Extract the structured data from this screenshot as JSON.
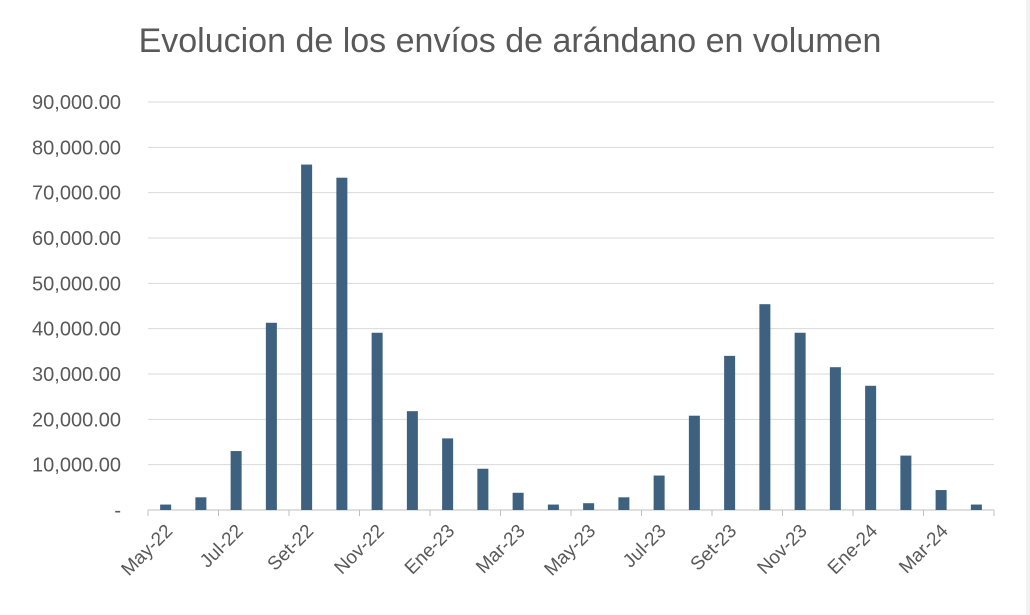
{
  "chart_data": {
    "type": "bar",
    "title": "Evolucion de los envíos de arándano en volumen",
    "xlabel": "",
    "ylabel": "",
    "ylim": [
      0,
      90000
    ],
    "yticks": [
      0,
      10000,
      20000,
      30000,
      40000,
      50000,
      60000,
      70000,
      80000,
      90000
    ],
    "ytick_labels": [
      "-",
      "10,000.00",
      "20,000.00",
      "30,000.00",
      "40,000.00",
      "50,000.00",
      "60,000.00",
      "70,000.00",
      "80,000.00",
      "90,000.00"
    ],
    "grid": true,
    "legend": "none",
    "bar_color": "#3e6180",
    "categories": [
      "May-22",
      "Jun-22",
      "Jul-22",
      "Ago-22",
      "Set-22",
      "Oct-22",
      "Nov-22",
      "Dic-22",
      "Ene-23",
      "Feb-23",
      "Mar-23",
      "Abr-23",
      "May-23",
      "Jun-23",
      "Jul-23",
      "Ago-23",
      "Set-23",
      "Oct-23",
      "Nov-23",
      "Dic-23",
      "Ene-24",
      "Feb-24",
      "Mar-24",
      "Abr-24"
    ],
    "x_tick_labels": [
      "May-22",
      "Jul-22",
      "Set-22",
      "Nov-22",
      "Ene-23",
      "Mar-23",
      "May-23",
      "Jul-23",
      "Set-23",
      "Nov-23",
      "Ene-24",
      "Mar-24"
    ],
    "values": [
      1200,
      2800,
      13000,
      41300,
      76200,
      73300,
      39100,
      21800,
      15800,
      9100,
      3800,
      1200,
      1500,
      2800,
      7600,
      20800,
      34000,
      45400,
      39100,
      31500,
      27400,
      12000,
      4400,
      1200
    ]
  }
}
